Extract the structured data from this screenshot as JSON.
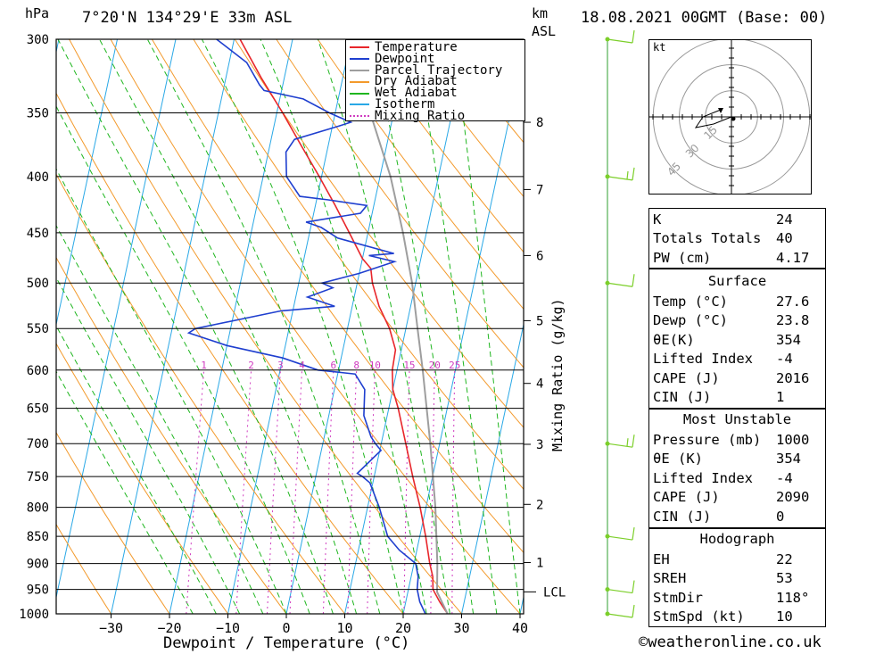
{
  "header": {
    "hpa_unit": "hPa",
    "location": "7°20'N  134°29'E  33m  ASL",
    "km_unit": "km",
    "asl": "ASL",
    "datetime": "18.08.2021  00GMT  (Base: 00)"
  },
  "legend": [
    "Temperature",
    "Dewpoint",
    "Parcel Trajectory",
    "Dry Adiabat",
    "Wet Adiabat",
    "Isotherm",
    "Mixing Ratio"
  ],
  "colors": {
    "temperature": "#e8262b",
    "dewpoint": "#1f3fcf",
    "parcel": "#9e9e9e",
    "dry_adiabat": "#f39a2c",
    "wet_adiabat": "#1fb61f",
    "isotherm": "#29a8e6",
    "mixing_ratio": "#d03cc0",
    "wind": "#7ccf2a"
  },
  "chart_data": {
    "type": "line",
    "title": "7°20'N  134°29'E  33m  ASL",
    "xlabel": "Dewpoint / Temperature (°C)",
    "ylabel": "hPa",
    "y2label": "Mixing Ratio (g/kg)",
    "xticks": [
      -30,
      -20,
      -10,
      0,
      10,
      20,
      30,
      40
    ],
    "pressure_levels": [
      300,
      350,
      400,
      450,
      500,
      550,
      600,
      650,
      700,
      750,
      800,
      850,
      900,
      950,
      1000
    ],
    "km_ticks": [
      {
        "km": 1,
        "p": 898
      },
      {
        "km": 2,
        "p": 795
      },
      {
        "km": 3,
        "p": 701
      },
      {
        "km": 4,
        "p": 617
      },
      {
        "km": 5,
        "p": 541
      },
      {
        "km": 6,
        "p": 472
      },
      {
        "km": 7,
        "p": 411
      },
      {
        "km": 8,
        "p": 357
      }
    ],
    "lcl": {
      "label": "LCL",
      "p": 955
    },
    "mixing_ratio_labels": [
      "1",
      "2",
      "3",
      "4",
      "6",
      "8",
      "10",
      "15",
      "20",
      "25"
    ],
    "mixing_ratio_values": [
      1,
      2,
      3,
      4,
      6,
      8,
      10,
      15,
      20,
      25
    ],
    "series": [
      {
        "name": "Temperature",
        "points": [
          [
            1000,
            27.6
          ],
          [
            975,
            25.8
          ],
          [
            950,
            24.2
          ],
          [
            925,
            23.7
          ],
          [
            900,
            22.7
          ],
          [
            850,
            21.0
          ],
          [
            800,
            19.0
          ],
          [
            750,
            16.6
          ],
          [
            700,
            14.2
          ],
          [
            650,
            11.6
          ],
          [
            625,
            10.0
          ],
          [
            600,
            9.2
          ],
          [
            575,
            9.0
          ],
          [
            550,
            7.2
          ],
          [
            525,
            4.6
          ],
          [
            500,
            2.6
          ],
          [
            485,
            1.8
          ],
          [
            475,
            0.0
          ],
          [
            450,
            -3.2
          ],
          [
            425,
            -6.6
          ],
          [
            400,
            -10.4
          ],
          [
            375,
            -14.6
          ],
          [
            360,
            -17.2
          ],
          [
            350,
            -19.0
          ],
          [
            325,
            -24.0
          ],
          [
            300,
            -29.0
          ]
        ]
      },
      {
        "name": "Dewpoint",
        "points": [
          [
            1000,
            23.8
          ],
          [
            975,
            22.4
          ],
          [
            950,
            21.5
          ],
          [
            925,
            21.2
          ],
          [
            900,
            20.3
          ],
          [
            875,
            17.0
          ],
          [
            850,
            14.5
          ],
          [
            800,
            12.0
          ],
          [
            760,
            9.5
          ],
          [
            750,
            8.0
          ],
          [
            745,
            7.0
          ],
          [
            710,
            10.2
          ],
          [
            700,
            9.0
          ],
          [
            690,
            8.0
          ],
          [
            660,
            6.0
          ],
          [
            625,
            5.2
          ],
          [
            605,
            3.0
          ],
          [
            600,
            -3.5
          ],
          [
            585,
            -10.0
          ],
          [
            570,
            -20.0
          ],
          [
            555,
            -27.0
          ],
          [
            550,
            -26.0
          ],
          [
            530,
            -12.0
          ],
          [
            525,
            -3.0
          ],
          [
            515,
            -8.0
          ],
          [
            505,
            -4.0
          ],
          [
            500,
            -6.0
          ],
          [
            490,
            0.0
          ],
          [
            478,
            5.6
          ],
          [
            472,
            1.0
          ],
          [
            470,
            5.2
          ],
          [
            455,
            -5.0
          ],
          [
            445,
            -8.2
          ],
          [
            440,
            -11.0
          ],
          [
            432,
            -2.0
          ],
          [
            425,
            -1.2
          ],
          [
            420,
            -8.0
          ],
          [
            417,
            -13.0
          ],
          [
            400,
            -16.0
          ],
          [
            380,
            -17.0
          ],
          [
            370,
            -16.0
          ],
          [
            360,
            -9.0
          ],
          [
            357,
            -7.0
          ],
          [
            350,
            -11.0
          ],
          [
            340,
            -16.0
          ],
          [
            334,
            -23.0
          ],
          [
            330,
            -24.0
          ],
          [
            315,
            -27.0
          ],
          [
            300,
            -33.0
          ]
        ]
      },
      {
        "name": "Parcel Trajectory",
        "points": [
          [
            1000,
            27.6
          ],
          [
            955,
            25.0
          ],
          [
            900,
            24.0
          ],
          [
            800,
            21.6
          ],
          [
            700,
            18.4
          ],
          [
            600,
            14.4
          ],
          [
            550,
            12.0
          ],
          [
            500,
            9.4
          ],
          [
            450,
            6.0
          ],
          [
            400,
            1.8
          ],
          [
            370,
            -1.6
          ],
          [
            350,
            -4.0
          ]
        ]
      }
    ],
    "wind_barbs": [
      {
        "p": 1000,
        "spd": 10
      },
      {
        "p": 950,
        "spd": 10
      },
      {
        "p": 850,
        "spd": 10
      },
      {
        "p": 700,
        "spd": 15
      },
      {
        "p": 500,
        "spd": 10
      },
      {
        "p": 400,
        "spd": 15
      },
      {
        "p": 300,
        "spd": 10
      }
    ],
    "hodograph": {
      "unit": "kt",
      "rings": [
        "15",
        "30",
        "45"
      ],
      "points": [
        [
          0,
          0
        ],
        [
          -5,
          -2
        ],
        [
          -10,
          -3
        ],
        [
          -8,
          0
        ],
        [
          -3,
          2
        ]
      ],
      "storm": [
        [
          -3,
          4
        ],
        [
          -4.5,
          3.5
        ],
        [
          -6,
          2
        ]
      ]
    }
  },
  "indices": {
    "general": [
      [
        "K",
        "24"
      ],
      [
        "Totals Totals",
        "40"
      ],
      [
        "PW (cm)",
        "4.17"
      ]
    ],
    "surface_title": "Surface",
    "surface": [
      [
        "Temp (°C)",
        "27.6"
      ],
      [
        "Dewp (°C)",
        "23.8"
      ],
      [
        "θE(K)",
        "354"
      ],
      [
        "Lifted Index",
        "-4"
      ],
      [
        "CAPE (J)",
        "2016"
      ],
      [
        "CIN (J)",
        "1"
      ]
    ],
    "mu_title": "Most Unstable",
    "mu": [
      [
        "Pressure (mb)",
        "1000"
      ],
      [
        "θE (K)",
        "354"
      ],
      [
        "Lifted Index",
        "-4"
      ],
      [
        "CAPE (J)",
        "2090"
      ],
      [
        "CIN (J)",
        "0"
      ]
    ],
    "hodo_title": "Hodograph",
    "hodo": [
      [
        "EH",
        "22"
      ],
      [
        "SREH",
        "53"
      ],
      [
        "StmDir",
        "118°"
      ],
      [
        "StmSpd (kt)",
        "10"
      ]
    ]
  },
  "footer": "©weatheronline.co.uk"
}
